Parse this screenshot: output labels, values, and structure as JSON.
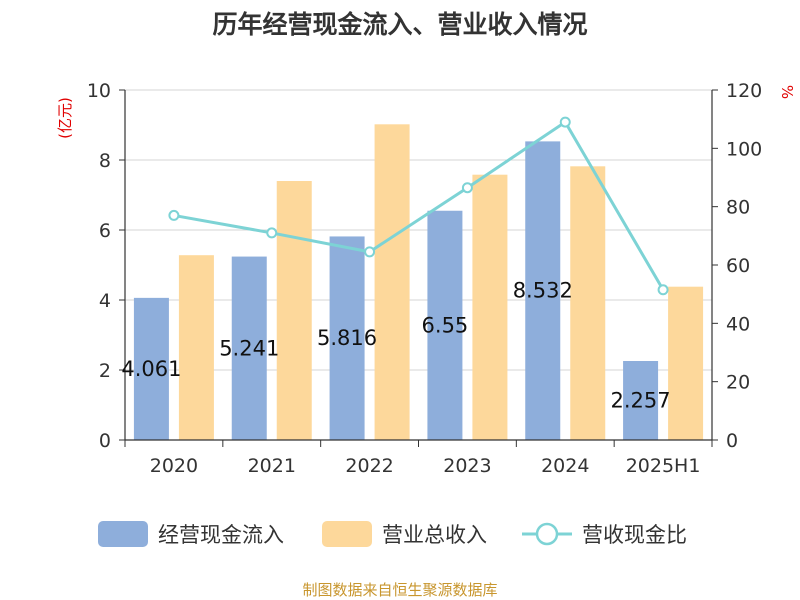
{
  "chart_data": {
    "type": "bar",
    "title": "历年经营现金流入、营业收入情况",
    "categories": [
      "2020",
      "2021",
      "2022",
      "2023",
      "2024",
      "2025H1"
    ],
    "y_left": {
      "unit": "(亿元)",
      "ylim": [
        0,
        10
      ],
      "ticks": [
        0,
        2,
        4,
        6,
        8,
        10
      ]
    },
    "y_right": {
      "unit": "%",
      "ylim": [
        0,
        120
      ],
      "ticks": [
        0,
        20,
        40,
        60,
        80,
        100,
        120
      ]
    },
    "series": [
      {
        "name": "经营现金流入",
        "type": "bar",
        "axis": "left",
        "color": "#8eaedb",
        "values": [
          4.061,
          5.241,
          5.816,
          6.55,
          8.532,
          2.257
        ],
        "labels": [
          "4.061",
          "5.241",
          "5.816",
          "6.55",
          "8.532",
          "2.257"
        ]
      },
      {
        "name": "营业总收入",
        "type": "bar",
        "axis": "left",
        "color": "#fdd89b",
        "values": [
          5.28,
          7.4,
          9.02,
          7.58,
          7.82,
          4.38
        ]
      },
      {
        "name": "营收现金比",
        "type": "line",
        "axis": "right",
        "color": "#7dd3d5",
        "values": [
          77,
          71,
          64.5,
          86.5,
          109,
          51.5
        ]
      }
    ],
    "grid": true,
    "legend_position": "bottom",
    "source": "制图数据来自恒生聚源数据库"
  }
}
